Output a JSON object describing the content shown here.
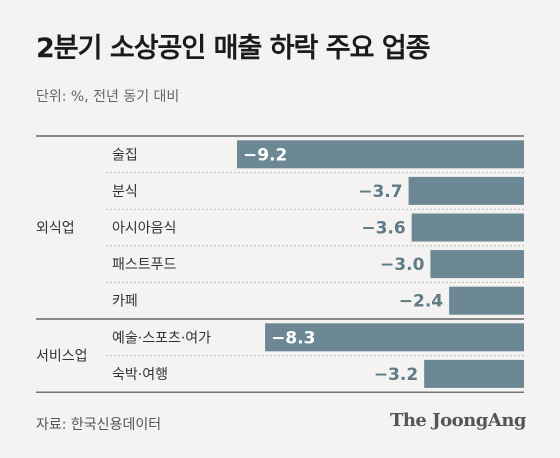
{
  "title": "2분기 소상공인 매출 하락 주요 업종",
  "unit_note": "단위: %, 전년 동기 대비",
  "source": "자료: 한국신용데이터",
  "logo": "The JoongAng",
  "colors": {
    "bar": "#6b8894",
    "label_inside": "#ffffff",
    "label_outside": "#5f7b87"
  },
  "chart_data": {
    "type": "bar",
    "orientation": "horizontal",
    "title": "2분기 소상공인 매출 하락 주요 업종",
    "groups": [
      {
        "name": "외식업",
        "categories": [
          "술집",
          "분식",
          "아시아음식",
          "패스트푸드",
          "카페"
        ],
        "values": [
          -9.2,
          -3.7,
          -3.6,
          -3.0,
          -2.4
        ]
      },
      {
        "name": "서비스업",
        "categories": [
          "예술·스포츠·여가",
          "숙박·여행"
        ],
        "values": [
          -8.3,
          -3.2
        ]
      }
    ],
    "value_labels": [
      "−9.2",
      "−3.7",
      "−3.6",
      "−3.0",
      "−2.4",
      "−8.3",
      "−3.2"
    ],
    "xlim": [
      -9.2,
      0
    ]
  }
}
